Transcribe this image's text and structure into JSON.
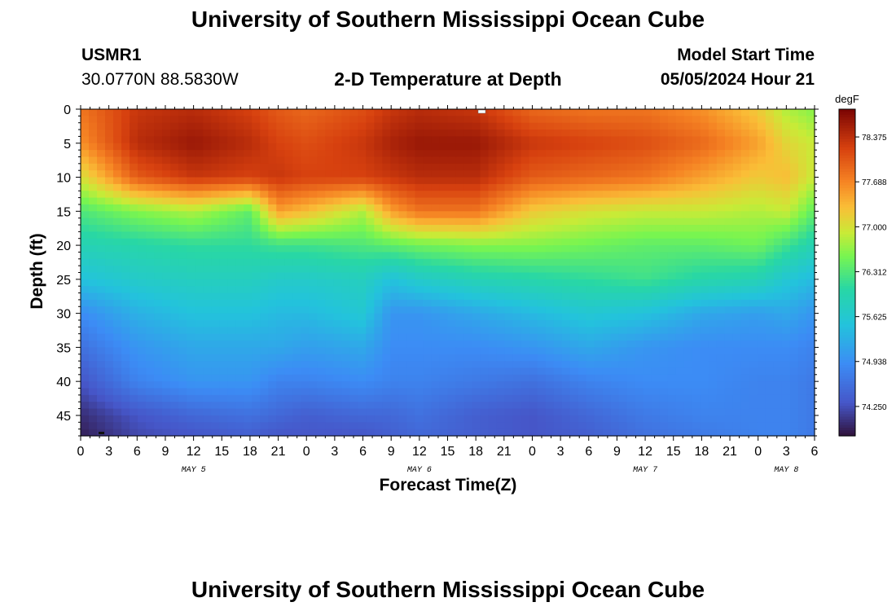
{
  "page_title": "University of Southern Mississippi Ocean Cube",
  "station": {
    "id": "USMR1",
    "coords": "30.0770N  88.5830W"
  },
  "model": {
    "label": "Model Start Time",
    "time": "05/05/2024 Hour 21"
  },
  "footer_title": "University of Southern Mississippi Ocean Cube",
  "chart_data": {
    "type": "heatmap",
    "title": "2-D Temperature at Depth",
    "xlabel": "Forecast Time(Z)",
    "ylabel": "Depth (ft)",
    "x_hour_range": [
      0,
      78
    ],
    "x_ticks": [
      "0",
      "3",
      "6",
      "9",
      "12",
      "15",
      "18",
      "21",
      "0",
      "3",
      "6",
      "9",
      "12",
      "15",
      "18",
      "21",
      "0",
      "3",
      "6",
      "9",
      "12",
      "15",
      "18",
      "21",
      "0",
      "3",
      "6"
    ],
    "date_labels": [
      {
        "label": "MAY 5",
        "hour": 12
      },
      {
        "label": "MAY 6",
        "hour": 36
      },
      {
        "label": "MAY 7",
        "hour": 60
      },
      {
        "label": "MAY 8",
        "hour": 75
      }
    ],
    "ylim": [
      0,
      48
    ],
    "y_ticks": [
      "0",
      "5",
      "10",
      "15",
      "20",
      "25",
      "30",
      "35",
      "40",
      "45"
    ],
    "y_tick_values": [
      0,
      5,
      10,
      15,
      20,
      25,
      30,
      35,
      40,
      45
    ],
    "colorbar": {
      "unit": "degF",
      "range": [
        73.8,
        78.8
      ],
      "tick_labels": [
        "78.375",
        "77.688",
        "77.000",
        "76.312",
        "75.625",
        "74.938",
        "74.250"
      ],
      "tick_values": [
        78.375,
        77.688,
        77.0,
        76.312,
        75.625,
        74.938,
        74.25
      ]
    },
    "hours": [
      0,
      6,
      12,
      18,
      21,
      24,
      30,
      33,
      36,
      42,
      48,
      54,
      60,
      66,
      72,
      75,
      78
    ],
    "depths": [
      0,
      5,
      10,
      15,
      20,
      25,
      30,
      35,
      40,
      45,
      48
    ],
    "values": [
      [
        77.8,
        78.3,
        78.4,
        78.2,
        78.0,
        77.9,
        78.1,
        78.3,
        78.4,
        78.3,
        77.9,
        77.8,
        77.8,
        77.6,
        77.2,
        76.8,
        76.6
      ],
      [
        77.6,
        78.4,
        78.6,
        78.4,
        78.2,
        78.1,
        78.3,
        78.5,
        78.6,
        78.6,
        78.3,
        78.2,
        78.1,
        77.9,
        77.5,
        77.1,
        76.9
      ],
      [
        77.0,
        78.0,
        78.3,
        78.2,
        78.3,
        78.2,
        78.2,
        78.3,
        78.4,
        78.4,
        78.0,
        77.9,
        77.8,
        77.5,
        77.2,
        77.3,
        76.9
      ],
      [
        76.3,
        76.6,
        76.8,
        76.4,
        77.5,
        77.3,
        76.8,
        77.5,
        77.8,
        77.8,
        77.2,
        77.0,
        76.9,
        76.9,
        76.8,
        76.9,
        76.4
      ],
      [
        75.9,
        76.0,
        76.1,
        76.1,
        76.2,
        76.2,
        76.3,
        76.4,
        76.5,
        76.6,
        76.6,
        76.5,
        76.4,
        76.4,
        76.5,
        76.2,
        75.9
      ],
      [
        75.5,
        75.7,
        75.8,
        75.8,
        75.7,
        75.7,
        75.8,
        75.5,
        75.7,
        75.9,
        76.0,
        76.1,
        76.2,
        76.0,
        75.9,
        75.6,
        75.4
      ],
      [
        74.9,
        75.3,
        75.5,
        75.5,
        75.4,
        75.4,
        75.6,
        75.0,
        75.0,
        75.2,
        75.4,
        75.6,
        75.5,
        75.2,
        75.1,
        75.2,
        75.0
      ],
      [
        74.6,
        75.0,
        75.2,
        75.2,
        75.2,
        75.1,
        75.2,
        74.9,
        74.9,
        74.9,
        75.0,
        75.2,
        75.0,
        74.9,
        74.9,
        74.9,
        74.8
      ],
      [
        74.3,
        74.8,
        75.0,
        75.0,
        74.8,
        74.8,
        74.9,
        74.8,
        74.8,
        74.7,
        74.6,
        74.8,
        74.9,
        74.9,
        74.8,
        74.8,
        74.7
      ],
      [
        74.0,
        74.3,
        74.5,
        74.6,
        74.5,
        74.4,
        74.5,
        74.5,
        74.6,
        74.4,
        74.3,
        74.5,
        74.7,
        74.8,
        74.8,
        74.8,
        74.7
      ],
      [
        73.9,
        74.2,
        74.3,
        74.4,
        74.3,
        74.3,
        74.3,
        74.4,
        74.5,
        74.4,
        74.3,
        74.4,
        74.6,
        74.7,
        74.8,
        74.8,
        74.7
      ]
    ]
  }
}
